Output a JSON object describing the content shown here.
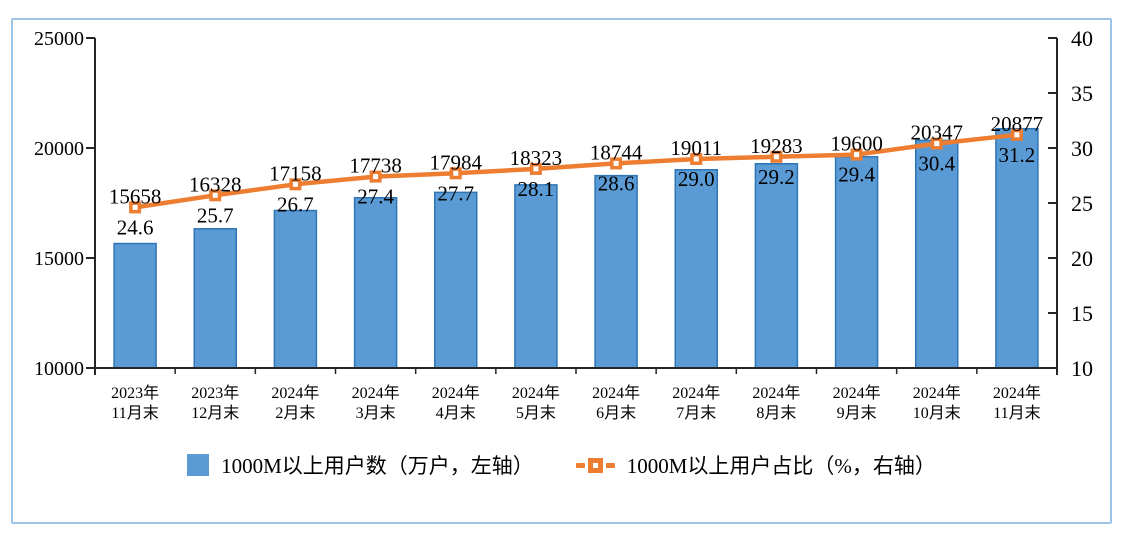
{
  "frame": {
    "border_color": "#9DC3E6",
    "background": "#FFFFFF"
  },
  "legend": {
    "items": [
      {
        "label": "1000M以上用户数（万户，左轴）",
        "type": "bar",
        "color": "#5B9BD5"
      },
      {
        "label": "1000M以上用户占比（%，右轴）",
        "type": "line",
        "color": "#ED7D31"
      }
    ]
  },
  "chart_data": {
    "type": "bar",
    "subtype": "bar-line-combo-dual-axis",
    "title": "",
    "categories": [
      [
        "2023年",
        "11月末"
      ],
      [
        "2023年",
        "12月末"
      ],
      [
        "2024年",
        "2月末"
      ],
      [
        "2024年",
        "3月末"
      ],
      [
        "2024年",
        "4月末"
      ],
      [
        "2024年",
        "5月末"
      ],
      [
        "2024年",
        "6月末"
      ],
      [
        "2024年",
        "7月末"
      ],
      [
        "2024年",
        "8月末"
      ],
      [
        "2024年",
        "9月末"
      ],
      [
        "2024年",
        "10月末"
      ],
      [
        "2024年",
        "11月末"
      ]
    ],
    "series": [
      {
        "name": "1000M以上用户数（万户，左轴）",
        "type": "bar",
        "axis": "left",
        "fill_color": "#5B9BD5",
        "border_color": "#2E75B6",
        "values": [
          15658,
          16328,
          17158,
          17738,
          17984,
          18323,
          18744,
          19011,
          19283,
          19600,
          20347,
          20877
        ],
        "labels": [
          "15658",
          "16328",
          "17158",
          "17738",
          "17984",
          "18323",
          "18744",
          "19011",
          "19283",
          "19600",
          "20347",
          "20877"
        ]
      },
      {
        "name": "1000M以上用户占比（%，右轴）",
        "type": "line",
        "axis": "right",
        "color": "#ED7D31",
        "marker": "square-with-white-center",
        "values": [
          24.6,
          25.7,
          26.7,
          27.4,
          27.7,
          28.1,
          28.6,
          29.0,
          29.2,
          29.4,
          30.4,
          31.2
        ],
        "labels": [
          "24.6",
          "25.7",
          "26.7",
          "27.4",
          "27.7",
          "28.1",
          "28.6",
          "29.0",
          "29.2",
          "29.4",
          "30.4",
          "31.2"
        ]
      }
    ],
    "left_axis": {
      "min": 10000,
      "max": 25000,
      "step": 5000,
      "ticks": [
        "10000",
        "15000",
        "20000",
        "25000"
      ]
    },
    "right_axis": {
      "min": 10,
      "max": 40,
      "step": 5,
      "ticks": [
        "10",
        "15",
        "20",
        "25",
        "30",
        "35",
        "40"
      ]
    },
    "grid": false,
    "legend_position": "bottom",
    "axis_color": "#262626"
  }
}
